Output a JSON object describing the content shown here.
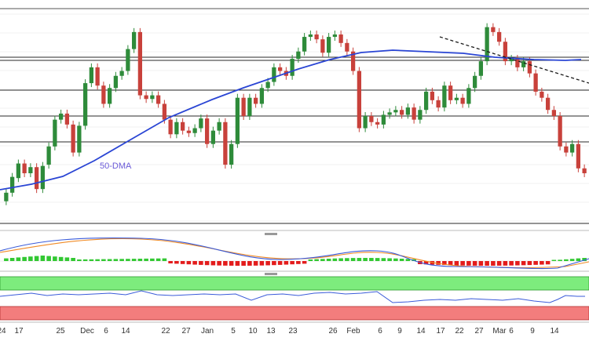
{
  "chart_data": {
    "type": "candlestick",
    "colors": {
      "up": "#2e8b3a",
      "down": "#c8413b",
      "sma50": "#2a45d4",
      "trendline": "#1a1a1a",
      "hline": "#2a2a2a",
      "macd_line": "#3a5bd9",
      "signal_line": "#f08a24",
      "hist_pos": "#32c832",
      "hist_neg": "#e31c1c",
      "rsi_line": "#3a5bd9",
      "overbought_zone": "#7dec7d",
      "oversold_zone": "#f37d7d",
      "grid": "#e4e4e4"
    },
    "x_tick_labels": [
      "24",
      "17",
      "25",
      "Dec",
      "6",
      "14",
      "22",
      "27",
      "Jan",
      "5",
      "10",
      "13",
      "23",
      "26",
      "Feb",
      "6",
      "9",
      "14",
      "17",
      "22",
      "27",
      "Mar",
      "6",
      "9",
      "14"
    ],
    "annotations": {
      "sma_label": "50-DMA"
    },
    "candles": [
      {
        "o": 155.0,
        "c": 148.0
      },
      {
        "o": 148.0,
        "c": 135.0
      },
      {
        "o": 136.0,
        "c": 124.0
      },
      {
        "o": 124.0,
        "c": 132.0
      },
      {
        "o": 132.0,
        "c": 127.0
      },
      {
        "o": 127.0,
        "c": 145.0
      },
      {
        "o": 145.0,
        "c": 126.0
      },
      {
        "o": 125.0,
        "c": 110.0
      },
      {
        "o": 110.0,
        "c": 88.0
      },
      {
        "o": 88.0,
        "c": 83.0
      },
      {
        "o": 83.0,
        "c": 92.0
      },
      {
        "o": 92.0,
        "c": 115.0
      },
      {
        "o": 115.0,
        "c": 93.0
      },
      {
        "o": 93.0,
        "c": 58.0
      },
      {
        "o": 58.0,
        "c": 45.0
      },
      {
        "o": 45.0,
        "c": 60.0
      },
      {
        "o": 60.0,
        "c": 75.0
      },
      {
        "o": 75.0,
        "c": 62.0
      },
      {
        "o": 62.0,
        "c": 52.0
      },
      {
        "o": 52.0,
        "c": 48.0
      },
      {
        "o": 48.0,
        "c": 30.0
      },
      {
        "o": 30.0,
        "c": 16.0
      },
      {
        "o": 16.0,
        "c": 68.0
      },
      {
        "o": 68.0,
        "c": 71.0
      },
      {
        "o": 71.0,
        "c": 68.0
      },
      {
        "o": 68.0,
        "c": 75.0
      },
      {
        "o": 75.0,
        "c": 88.0
      },
      {
        "o": 88.0,
        "c": 100.0
      },
      {
        "o": 100.0,
        "c": 90.0
      },
      {
        "o": 90.0,
        "c": 97.0
      },
      {
        "o": 97.0,
        "c": 99.0
      },
      {
        "o": 99.0,
        "c": 95.0
      },
      {
        "o": 95.0,
        "c": 87.0
      },
      {
        "o": 87.0,
        "c": 108.0
      },
      {
        "o": 108.0,
        "c": 97.0
      },
      {
        "o": 97.0,
        "c": 90.0
      },
      {
        "o": 90.0,
        "c": 125.0
      },
      {
        "o": 125.0,
        "c": 108.0
      },
      {
        "o": 108.0,
        "c": 70.0
      },
      {
        "o": 70.0,
        "c": 85.0
      },
      {
        "o": 85.0,
        "c": 70.0
      },
      {
        "o": 70.0,
        "c": 75.0
      },
      {
        "o": 75.0,
        "c": 62.0
      },
      {
        "o": 62.0,
        "c": 57.0
      },
      {
        "o": 57.0,
        "c": 45.0
      },
      {
        "o": 45.0,
        "c": 48.0
      },
      {
        "o": 48.0,
        "c": 52.0
      },
      {
        "o": 52.0,
        "c": 38.0
      },
      {
        "o": 38.0,
        "c": 32.0
      },
      {
        "o": 32.0,
        "c": 20.0
      },
      {
        "o": 20.0,
        "c": 18.0
      },
      {
        "o": 18.0,
        "c": 22.0
      },
      {
        "o": 22.0,
        "c": 33.0
      },
      {
        "o": 33.0,
        "c": 20.0
      },
      {
        "o": 20.0,
        "c": 18.0
      },
      {
        "o": 18.0,
        "c": 25.0
      },
      {
        "o": 25.0,
        "c": 32.0
      },
      {
        "o": 32.0,
        "c": 48.0
      },
      {
        "o": 48.0,
        "c": 95.0
      },
      {
        "o": 95.0,
        "c": 85.0
      },
      {
        "o": 85.0,
        "c": 90.0
      },
      {
        "o": 90.0,
        "c": 92.0
      },
      {
        "o": 92.0,
        "c": 84.0
      },
      {
        "o": 84.0,
        "c": 82.0
      },
      {
        "o": 82.0,
        "c": 80.0
      },
      {
        "o": 80.0,
        "c": 84.0
      },
      {
        "o": 84.0,
        "c": 78.0
      },
      {
        "o": 78.0,
        "c": 88.0
      },
      {
        "o": 88.0,
        "c": 80.0
      },
      {
        "o": 80.0,
        "c": 65.0
      },
      {
        "o": 65.0,
        "c": 72.0
      },
      {
        "o": 72.0,
        "c": 78.0
      },
      {
        "o": 78.0,
        "c": 60.0
      },
      {
        "o": 60.0,
        "c": 72.0
      },
      {
        "o": 72.0,
        "c": 70.0
      },
      {
        "o": 70.0,
        "c": 75.0
      },
      {
        "o": 75.0,
        "c": 62.0
      },
      {
        "o": 62.0,
        "c": 52.0
      },
      {
        "o": 52.0,
        "c": 40.0
      },
      {
        "o": 40.0,
        "c": 12.0
      },
      {
        "o": 12.0,
        "c": 16.0
      },
      {
        "o": 16.0,
        "c": 24.0
      },
      {
        "o": 24.0,
        "c": 40.0
      },
      {
        "o": 40.0,
        "c": 38.0
      },
      {
        "o": 38.0,
        "c": 45.0
      },
      {
        "o": 45.0,
        "c": 40.0
      },
      {
        "o": 40.0,
        "c": 50.0
      },
      {
        "o": 50.0,
        "c": 65.0
      },
      {
        "o": 65.0,
        "c": 70.0
      },
      {
        "o": 70.0,
        "c": 80.0
      },
      {
        "o": 80.0,
        "c": 85.0
      },
      {
        "o": 85.0,
        "c": 110.0
      },
      {
        "o": 110.0,
        "c": 115.0
      },
      {
        "o": 115.0,
        "c": 108.0
      },
      {
        "o": 108.0,
        "c": 128.0
      },
      {
        "o": 128.0,
        "c": 132.0
      }
    ],
    "sma50": [
      {
        "i": 0,
        "v": 48
      },
      {
        "i": 10,
        "v": 55
      },
      {
        "i": 20,
        "v": 63
      },
      {
        "i": 30,
        "v": 72
      },
      {
        "i": 40,
        "v": 80
      },
      {
        "i": 50,
        "v": 85
      },
      {
        "i": 60,
        "v": 90
      },
      {
        "i": 70,
        "v": 90
      },
      {
        "i": 80,
        "v": 88
      },
      {
        "i": 90,
        "v": 86
      },
      {
        "i": 97,
        "v": 88
      }
    ],
    "horizontal_levels": [
      95.0,
      91.0,
      80.0,
      66.0,
      48.0,
      16.0
    ],
    "trendline": {
      "x1": 72,
      "y1": 116,
      "x2": 97,
      "y2": 82
    },
    "macd": {
      "ylim": [
        -1,
        1
      ],
      "line": [],
      "signal": [],
      "hist": []
    },
    "rsi": {
      "ylim": [
        0,
        100
      ]
    }
  }
}
